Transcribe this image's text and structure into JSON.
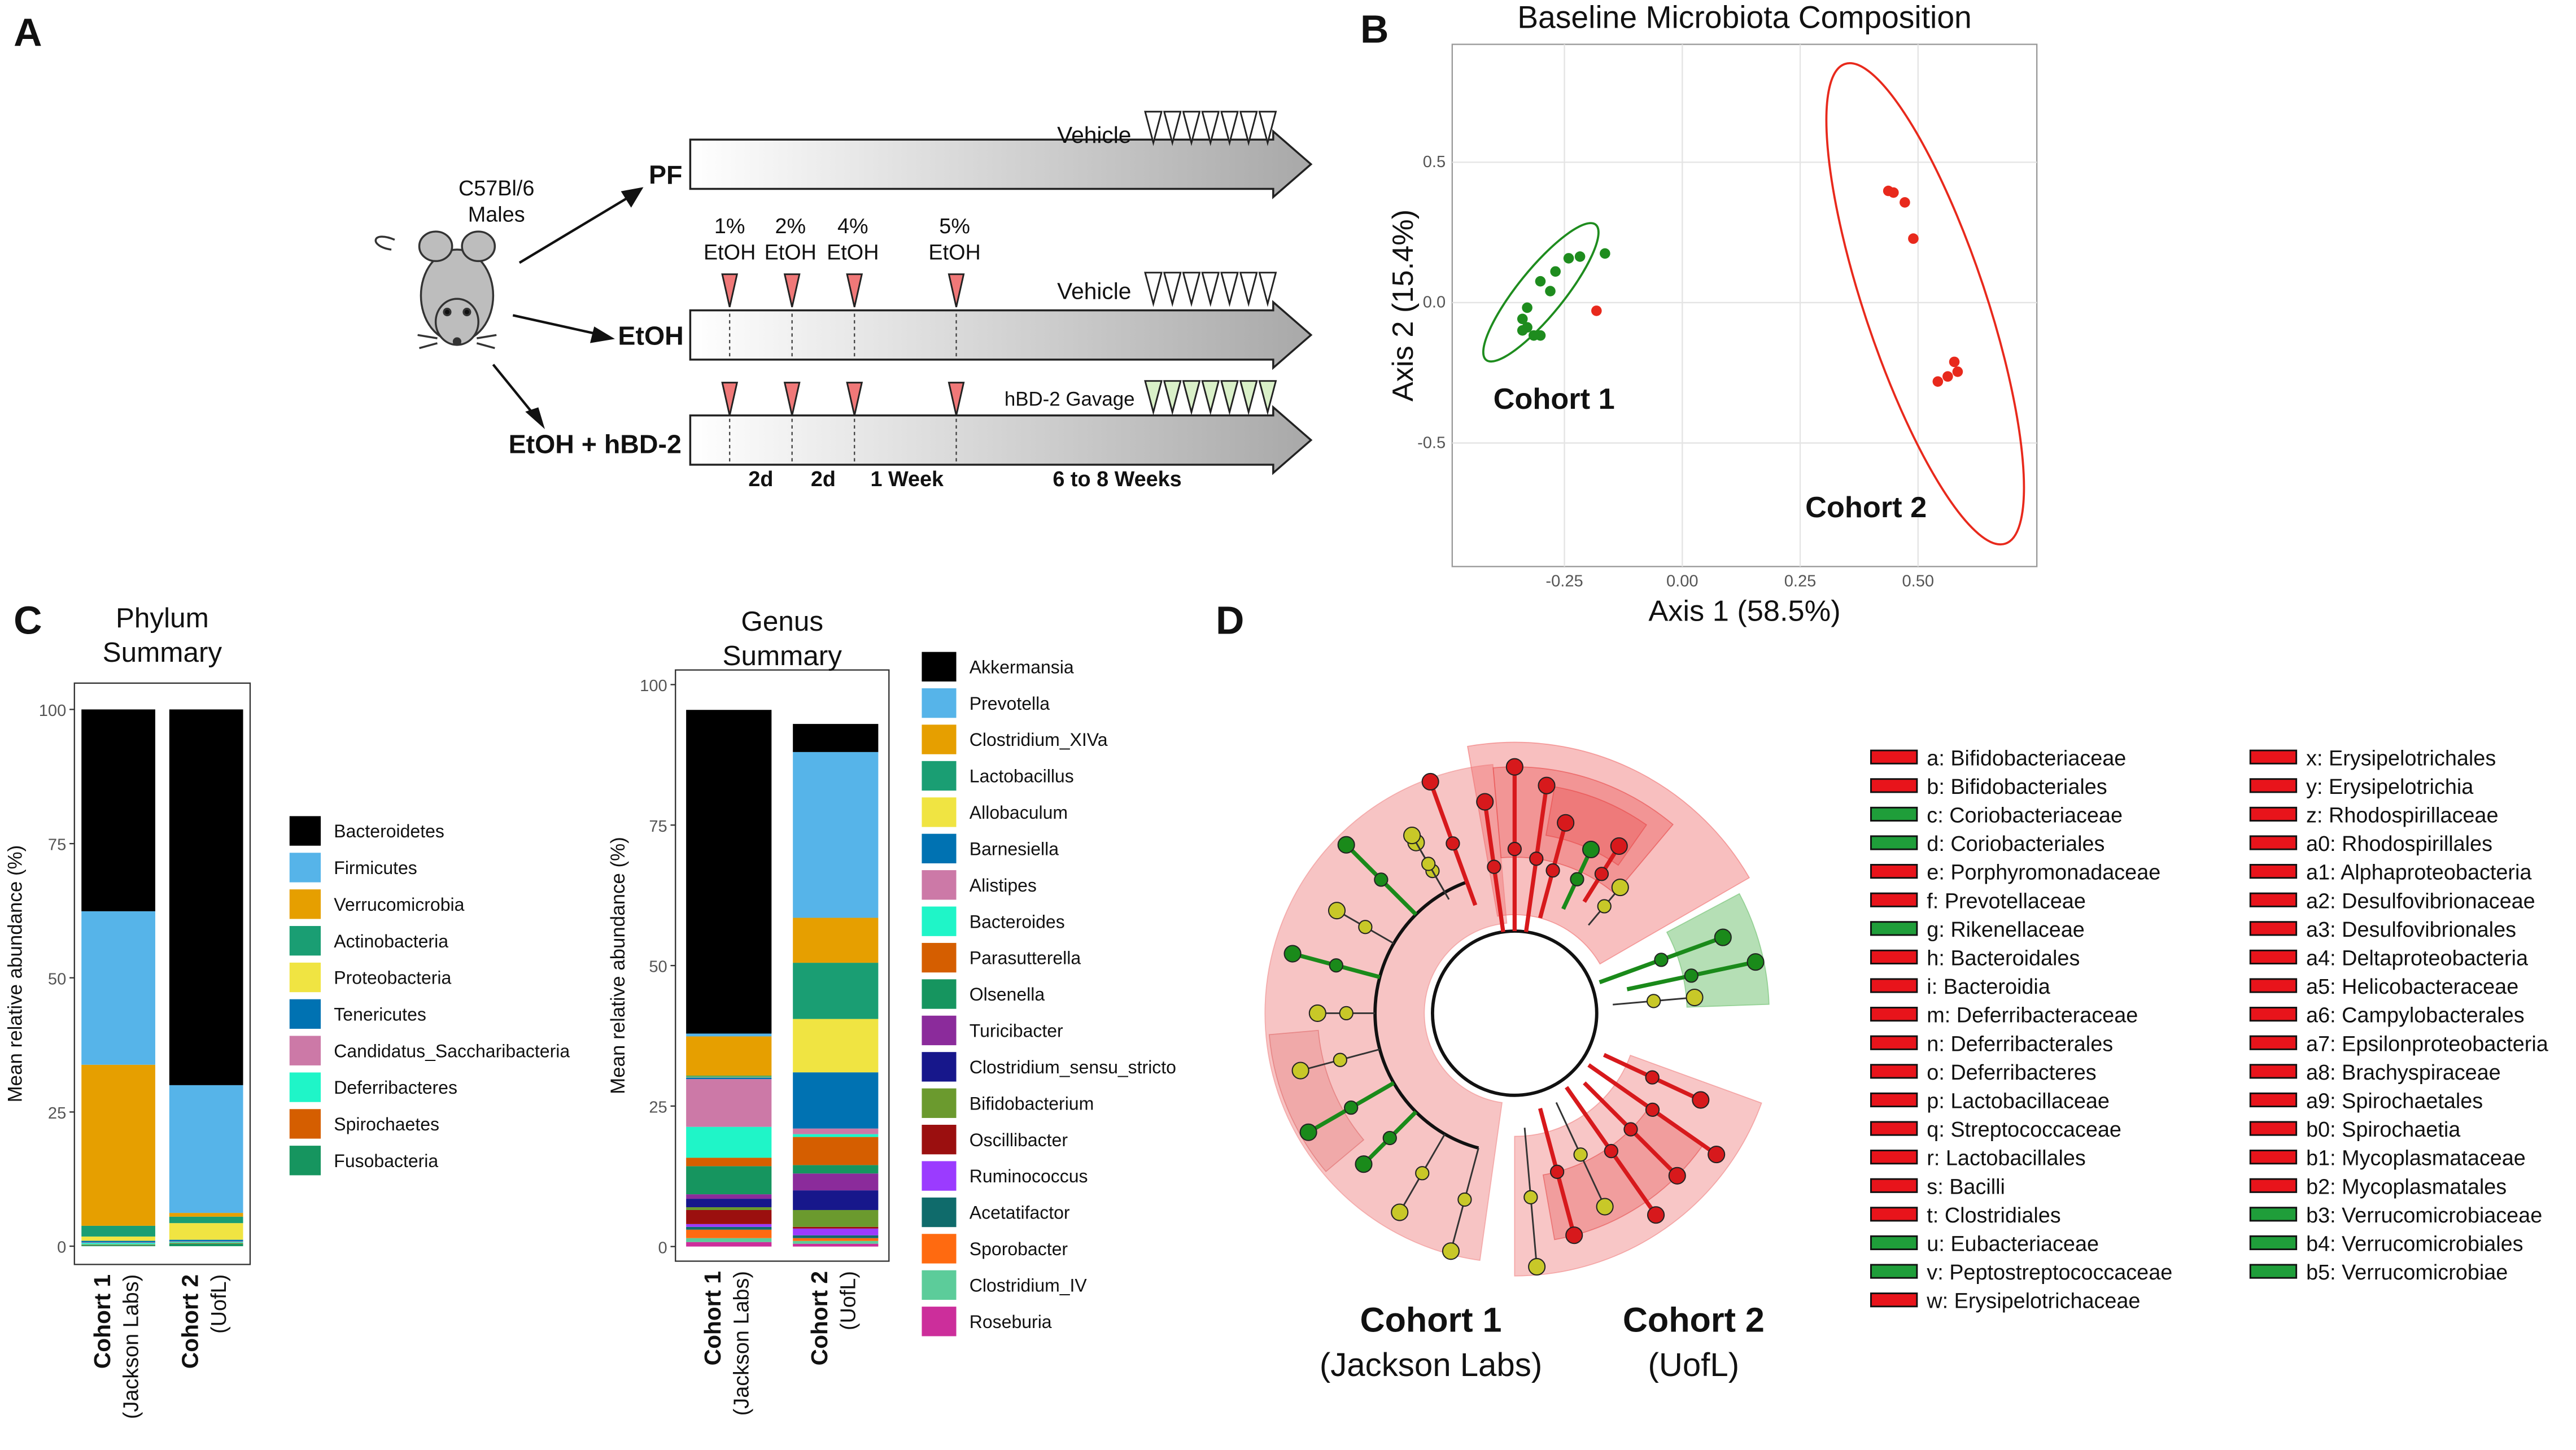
{
  "panel_labels": [
    "A",
    "B",
    "C",
    "D"
  ],
  "diagram": {
    "strain": [
      "C57Bl/6",
      "Males"
    ],
    "groups": [
      "PF",
      "EtOH",
      "EtOH + hBD-2"
    ],
    "doses": [
      {
        "pct": "1%",
        "agent": "EtOH"
      },
      {
        "pct": "2%",
        "agent": "EtOH"
      },
      {
        "pct": "4%",
        "agent": "EtOH"
      },
      {
        "pct": "5%",
        "agent": "EtOH"
      }
    ],
    "treatments": [
      "Vehicle",
      "Vehicle",
      "hBD-2 Gavage"
    ],
    "intervals": [
      "2d",
      "2d",
      "1 Week",
      "6 to 8 Weeks"
    ]
  },
  "chart_data": [
    {
      "type": "scatter",
      "title": "Baseline Microbiota Composition",
      "xlabel": "Axis 1 (58.5%)",
      "ylabel": "Axis 2 (15.4%)",
      "xlim": [
        -0.488,
        0.752
      ],
      "ylim": [
        -0.94,
        0.92
      ],
      "xticks": [
        -0.25,
        {
          "value": 0,
          "label": "0.00"
        },
        0.25,
        {
          "value": 0.5,
          "label": "0.50"
        }
      ],
      "yticks": [
        -0.5,
        {
          "value": 0,
          "label": "0.0"
        },
        0.5
      ],
      "grid": true,
      "series": [
        {
          "name": "Cohort 1",
          "color": "#1e8c1e",
          "label_color": "#22b14c",
          "x": [
            -0.164,
            -0.217,
            -0.241,
            -0.269,
            -0.301,
            -0.28,
            -0.329,
            -0.339,
            -0.329,
            -0.315,
            -0.301,
            -0.339
          ],
          "values": [
            0.175,
            0.164,
            0.158,
            0.111,
            0.076,
            0.041,
            -0.018,
            -0.058,
            -0.088,
            -0.117,
            -0.117,
            -0.099
          ]
        },
        {
          "name": "Cohort 2",
          "color": "#e8291c",
          "label_color": "#e3151b",
          "x": [
            0.437,
            0.448,
            0.472,
            0.49,
            0.577,
            0.584,
            0.563,
            0.542,
            -0.182
          ],
          "values": [
            0.398,
            0.392,
            0.357,
            0.228,
            -0.211,
            -0.246,
            -0.263,
            -0.281,
            -0.029
          ]
        }
      ]
    },
    {
      "type": "bar",
      "stacked": true,
      "title": [
        "Phylum",
        "Summary"
      ],
      "ylabel": "Mean relative abundance (%)",
      "ylim": [
        -3.4,
        104.9
      ],
      "yticks": [
        0,
        25,
        50,
        75,
        100
      ],
      "categories": [
        "Cohort 1",
        "Cohort 2"
      ],
      "category_sublabels": [
        "(Jackson Labs)",
        "(UofL)"
      ],
      "category_colors": [
        "#22b14c",
        "#d7191c"
      ],
      "series": [
        {
          "name": "Bacteroidetes",
          "color": "#000000",
          "values": [
            37.6,
            70
          ]
        },
        {
          "name": "Firmicutes",
          "color": "#56b4e9",
          "values": [
            28.6,
            23.8
          ]
        },
        {
          "name": "Verrucomicrobia",
          "color": "#e69f00",
          "values": [
            30.0,
            0.7
          ]
        },
        {
          "name": "Actinobacteria",
          "color": "#1a9e73",
          "values": [
            2.0,
            1.2
          ]
        },
        {
          "name": "Proteobacteria",
          "color": "#f0e442",
          "values": [
            0.8,
            3.1
          ]
        },
        {
          "name": "Tenericutes",
          "color": "#0072b2",
          "values": [
            0.3,
            0.3
          ]
        },
        {
          "name": "Candidatus_Saccharibacteria",
          "color": "#cc79a7",
          "values": [
            0.1,
            0.1
          ]
        },
        {
          "name": "Deferribacteres",
          "color": "#1ff5c8",
          "values": [
            0.3,
            0.2
          ]
        },
        {
          "name": "Spirochaetes",
          "color": "#d55e00",
          "values": [
            0.1,
            0.1
          ]
        },
        {
          "name": "Fusobacteria",
          "color": "#16955f",
          "values": [
            0.2,
            0.5
          ]
        }
      ]
    },
    {
      "type": "bar",
      "stacked": true,
      "title": [
        "Genus",
        "Summary"
      ],
      "ylabel": "Mean relative abundance (%)",
      "ylim": [
        -2.6,
        102.6
      ],
      "yticks": [
        0,
        25,
        50,
        75,
        100
      ],
      "categories": [
        "Cohort 1",
        "Cohort 2"
      ],
      "category_sublabels": [
        "(Jackson Labs)",
        "(UofL)"
      ],
      "category_colors": [
        "#22b14c",
        "#d7191c"
      ],
      "series": [
        {
          "name": "Akkermansia",
          "color": "#000000",
          "values": [
            57.6,
            5.0
          ]
        },
        {
          "name": "Prevotella",
          "color": "#56b4e9",
          "values": [
            0.5,
            29.5
          ]
        },
        {
          "name": "Clostridium_XIVa",
          "color": "#e69f00",
          "values": [
            7.0,
            8.0
          ]
        },
        {
          "name": "Lactobacillus",
          "color": "#1a9e73",
          "values": [
            0.2,
            10.0
          ]
        },
        {
          "name": "Allobaculum",
          "color": "#f0e442",
          "values": [
            0.1,
            9.5
          ]
        },
        {
          "name": "Barnesiella",
          "color": "#0072b2",
          "values": [
            0.3,
            10.0
          ]
        },
        {
          "name": "Alistipes",
          "color": "#cc79a7",
          "values": [
            8.5,
            1.0
          ]
        },
        {
          "name": "Bacteroides",
          "color": "#1ff5c8",
          "values": [
            5.5,
            0.5
          ]
        },
        {
          "name": "Parasutterella",
          "color": "#d55e00",
          "values": [
            1.5,
            5.0
          ]
        },
        {
          "name": "Olsenella",
          "color": "#16955f",
          "values": [
            5.0,
            1.5
          ]
        },
        {
          "name": "Turicibacter",
          "color": "#8b2b9b",
          "values": [
            0.8,
            3.0
          ]
        },
        {
          "name": "Clostridium_sensu_stricto",
          "color": "#17178b",
          "values": [
            1.5,
            3.5
          ]
        },
        {
          "name": "Bifidobacterium",
          "color": "#6b9a2e",
          "values": [
            0.5,
            3.0
          ]
        },
        {
          "name": "Oscillibacter",
          "color": "#9b0f0f",
          "values": [
            2.5,
            0.3
          ]
        },
        {
          "name": "Ruminococcus",
          "color": "#9b3bff",
          "values": [
            0.5,
            1.2
          ]
        },
        {
          "name": "Acetatifactor",
          "color": "#0f6b6b",
          "values": [
            0.5,
            0.5
          ]
        },
        {
          "name": "Sporobacter",
          "color": "#ff6a10",
          "values": [
            1.5,
            0.5
          ]
        },
        {
          "name": "Clostridium_IV",
          "color": "#5ccc9a",
          "values": [
            0.7,
            0.5
          ]
        },
        {
          "name": "Roseburia",
          "color": "#cc2e9b",
          "values": [
            0.8,
            0.5
          ]
        }
      ]
    }
  ],
  "cladogram": {
    "cohorts": [
      {
        "name": "Cohort 1",
        "source": "(Jackson Labs)",
        "color": "#22b14c"
      },
      {
        "name": "Cohort 2",
        "source": "(UofL)",
        "color": "#e3151b"
      }
    ],
    "legend": [
      {
        "label": "a: Bifidobacteriaceae",
        "color": "#e8141b"
      },
      {
        "label": "b: Bifidobacteriales",
        "color": "#e8141b"
      },
      {
        "label": "c: Coriobacteriaceae",
        "color": "#1f9e3a"
      },
      {
        "label": "d: Coriobacteriales",
        "color": "#1f9e3a"
      },
      {
        "label": "e: Porphyromonadaceae",
        "color": "#e8141b"
      },
      {
        "label": "f: Prevotellaceae",
        "color": "#e8141b"
      },
      {
        "label": "g: Rikenellaceae",
        "color": "#1f9e3a"
      },
      {
        "label": "h: Bacteroidales",
        "color": "#e8141b"
      },
      {
        "label": "i: Bacteroidia",
        "color": "#e8141b"
      },
      {
        "label": "m: Deferribacteraceae",
        "color": "#e8141b"
      },
      {
        "label": "n: Deferribacterales",
        "color": "#e8141b"
      },
      {
        "label": "o: Deferribacteres",
        "color": "#e8141b"
      },
      {
        "label": "p: Lactobacillaceae",
        "color": "#e8141b"
      },
      {
        "label": "q: Streptococcaceae",
        "color": "#e8141b"
      },
      {
        "label": "r: Lactobacillales",
        "color": "#e8141b"
      },
      {
        "label": "s: Bacilli",
        "color": "#e8141b"
      },
      {
        "label": "t: Clostridiales",
        "color": "#e8141b"
      },
      {
        "label": "u: Eubacteriaceae",
        "color": "#1f9e3a"
      },
      {
        "label": "v: Peptostreptococcaceae",
        "color": "#1f9e3a"
      },
      {
        "label": "w: Erysipelotrichaceae",
        "color": "#e8141b"
      },
      {
        "label": "x: Erysipelotrichales",
        "color": "#e8141b"
      },
      {
        "label": "y: Erysipelotrichia",
        "color": "#e8141b"
      },
      {
        "label": "z: Rhodospirillaceae",
        "color": "#e8141b"
      },
      {
        "label": "a0: Rhodospirillales",
        "color": "#e8141b"
      },
      {
        "label": "a1: Alphaproteobacteria",
        "color": "#e8141b"
      },
      {
        "label": "a2: Desulfovibrionaceae",
        "color": "#e8141b"
      },
      {
        "label": "a3: Desulfovibrionales",
        "color": "#e8141b"
      },
      {
        "label": "a4: Deltaproteobacteria",
        "color": "#e8141b"
      },
      {
        "label": "a5: Helicobacteraceae",
        "color": "#e8141b"
      },
      {
        "label": "a6: Campylobacterales",
        "color": "#e8141b"
      },
      {
        "label": "a7: Epsilonproteobacteria",
        "color": "#e8141b"
      },
      {
        "label": "a8: Brachyspiraceae",
        "color": "#e8141b"
      },
      {
        "label": "a9: Spirochaetales",
        "color": "#e8141b"
      },
      {
        "label": "b0: Spirochaetia",
        "color": "#e8141b"
      },
      {
        "label": "b1: Mycoplasmataceae",
        "color": "#e8141b"
      },
      {
        "label": "b2: Mycoplasmatales",
        "color": "#e8141b"
      },
      {
        "label": "b3: Verrucomicrobiaceae",
        "color": "#1f9e3a"
      },
      {
        "label": "b4: Verrucomicrobiales",
        "color": "#1f9e3a"
      },
      {
        "label": "b5: Verrucomicrobiae",
        "color": "#1f9e3a"
      }
    ]
  }
}
